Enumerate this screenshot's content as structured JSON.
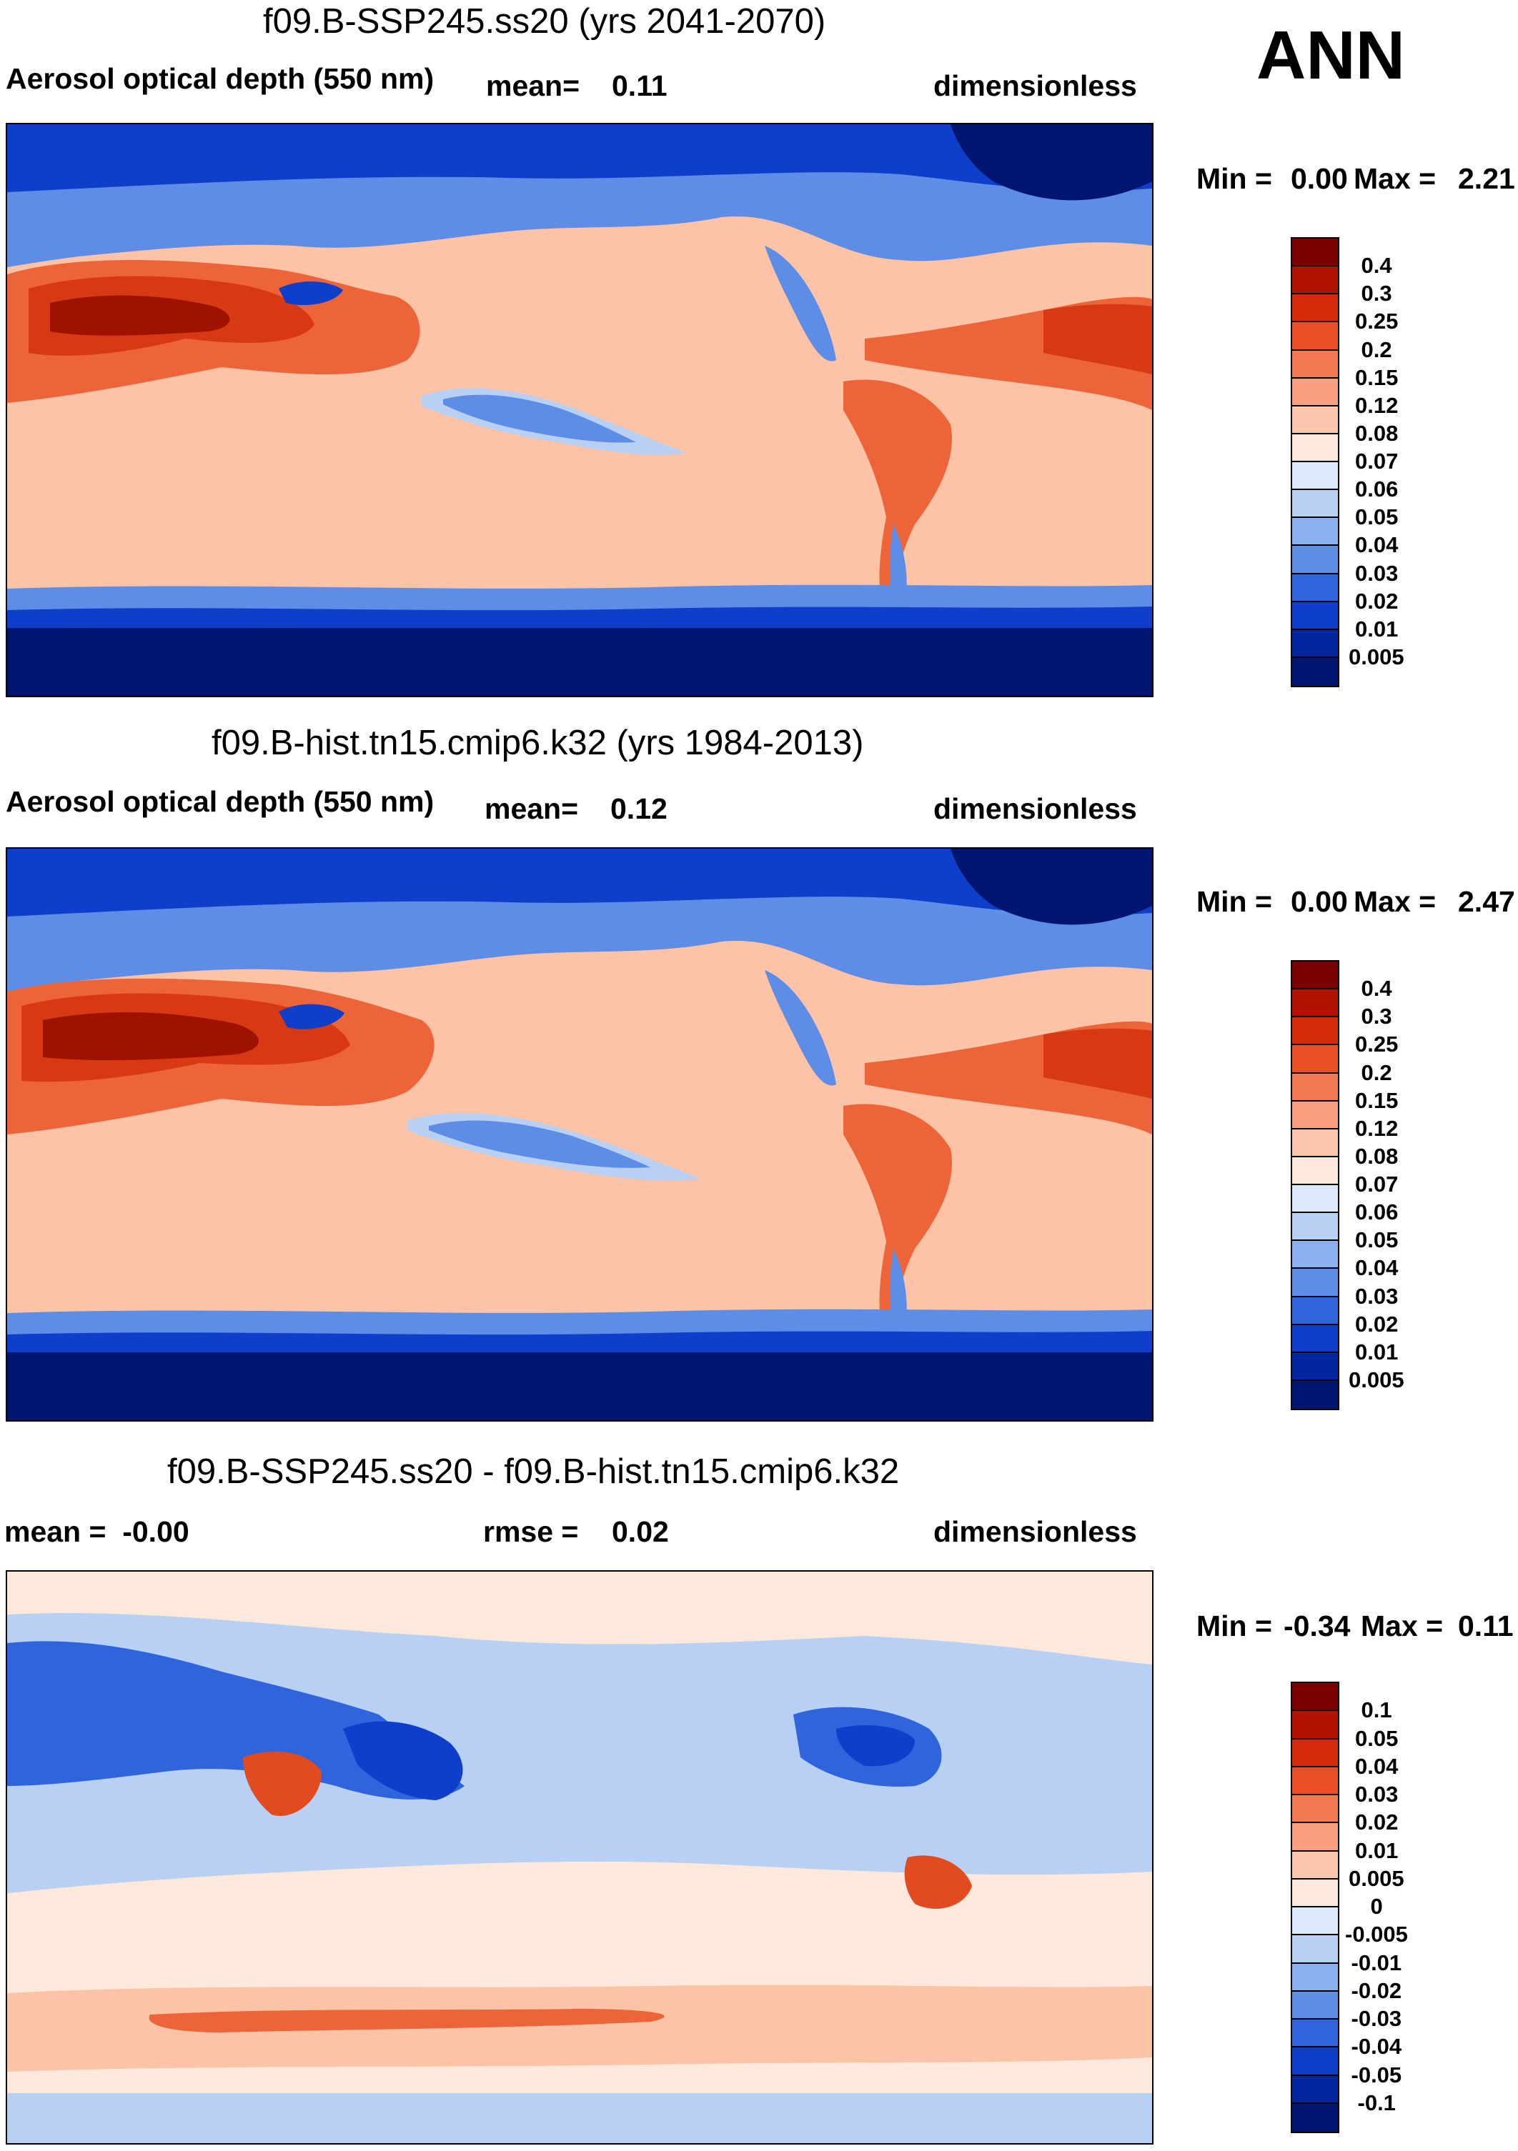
{
  "season": "ANN",
  "panels": [
    {
      "title": "f09.B-SSP245.ss20 (yrs 2041-2070)",
      "left_label": "Aerosol optical depth (550 nm)",
      "mid_label": "mean=",
      "mid_value": "0.11",
      "units": "dimensionless",
      "min_label": "Min =",
      "min_value": "0.00",
      "max_label": "Max =",
      "max_value": "2.21",
      "colorbar": {
        "levels": [
          "0.4",
          "0.3",
          "0.25",
          "0.2",
          "0.15",
          "0.12",
          "0.08",
          "0.07",
          "0.06",
          "0.05",
          "0.04",
          "0.03",
          "0.02",
          "0.01",
          "0.005"
        ],
        "colors": [
          "#7d0000",
          "#b01400",
          "#d42a0a",
          "#ea4f25",
          "#f27a52",
          "#f8a07f",
          "#fcc8ad",
          "#fde9dc",
          "#dbe9fa",
          "#b7d0f4",
          "#8db1ee",
          "#5d8de6",
          "#2f64dc",
          "#0f3fca",
          "#02269e",
          "#001570"
        ]
      }
    },
    {
      "title": "f09.B-hist.tn15.cmip6.k32 (yrs 1984-2013)",
      "left_label": "Aerosol optical depth (550 nm)",
      "mid_label": "mean=",
      "mid_value": "0.12",
      "units": "dimensionless",
      "min_label": "Min =",
      "min_value": "0.00",
      "max_label": "Max =",
      "max_value": "2.47",
      "colorbar": {
        "levels": [
          "0.4",
          "0.3",
          "0.25",
          "0.2",
          "0.15",
          "0.12",
          "0.08",
          "0.07",
          "0.06",
          "0.05",
          "0.04",
          "0.03",
          "0.02",
          "0.01",
          "0.005"
        ],
        "colors": [
          "#7d0000",
          "#b01400",
          "#d42a0a",
          "#ea4f25",
          "#f27a52",
          "#f8a07f",
          "#fcc8ad",
          "#fde9dc",
          "#dbe9fa",
          "#b7d0f4",
          "#8db1ee",
          "#5d8de6",
          "#2f64dc",
          "#0f3fca",
          "#02269e",
          "#001570"
        ]
      }
    },
    {
      "title": "f09.B-SSP245.ss20 - f09.B-hist.tn15.cmip6.k32",
      "left_label": "mean =  -0.00",
      "mid_label": "rmse =",
      "mid_value": "0.02",
      "units": "dimensionless",
      "min_label": "Min =",
      "min_value": "-0.34",
      "max_label": "Max =",
      "max_value": "0.11",
      "colorbar": {
        "levels": [
          "0.1",
          "0.05",
          "0.04",
          "0.03",
          "0.02",
          "0.01",
          "0.005",
          "0",
          "-0.005",
          "-0.01",
          "-0.02",
          "-0.03",
          "-0.04",
          "-0.05",
          "-0.1"
        ],
        "colors": [
          "#7d0000",
          "#b01400",
          "#d42a0a",
          "#ea4f25",
          "#f27a52",
          "#f8a07f",
          "#fcc8ad",
          "#fde9dc",
          "#dbe9fa",
          "#b7d0f4",
          "#8db1ee",
          "#5d8de6",
          "#2f64dc",
          "#0f3fca",
          "#02269e",
          "#001570"
        ]
      }
    }
  ],
  "field_colors": {
    "ocean_mid": "#fcc3a6",
    "ocean_pale": "#fde3d3",
    "dust_dark": "#a01200",
    "dust": "#d73a12",
    "smoke": "#ec6438",
    "polar_deep": "#001570",
    "polar": "#0f3fca",
    "cool": "#5d8de6",
    "cool_light": "#b7d0f4",
    "diff_bg": "#fde9dc",
    "diff_blue": "#2f64dc",
    "diff_blue_light": "#b7d0f4",
    "diff_red": "#e24a20"
  }
}
